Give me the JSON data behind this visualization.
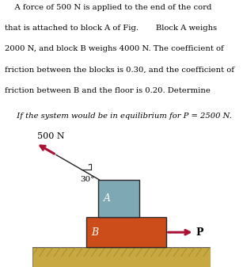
{
  "bg_color": "#ffffff",
  "block_A_color": "#7fa8b5",
  "block_B_color": "#cc4c1a",
  "block_A_edge": "#2a2a2a",
  "block_B_edge": "#2a2a2a",
  "ground_color": "#c8a840",
  "ground_hatch_color": "#9a8030",
  "arrow_color": "#aa1133",
  "cord_color": "#222222",
  "angle_label": "30°",
  "label_500N": "500 N",
  "label_P": "P",
  "label_A": "A",
  "label_B": "B",
  "text_lines": [
    "    A force of 500 N is applied to the end of the cord",
    "that is attached to block A of Fig.       Block A weighs",
    "2000 N, and block B weighs 4000 N. The coefficient of",
    "friction between the blocks is 0.30, and the coefficient of",
    "friction between B and the floor is 0.20. Determine"
  ],
  "italic_line": "  If the system would be in equilibrium for P = 2500 N.",
  "fontsize_main": 7.2,
  "fontsize_italic": 7.2
}
